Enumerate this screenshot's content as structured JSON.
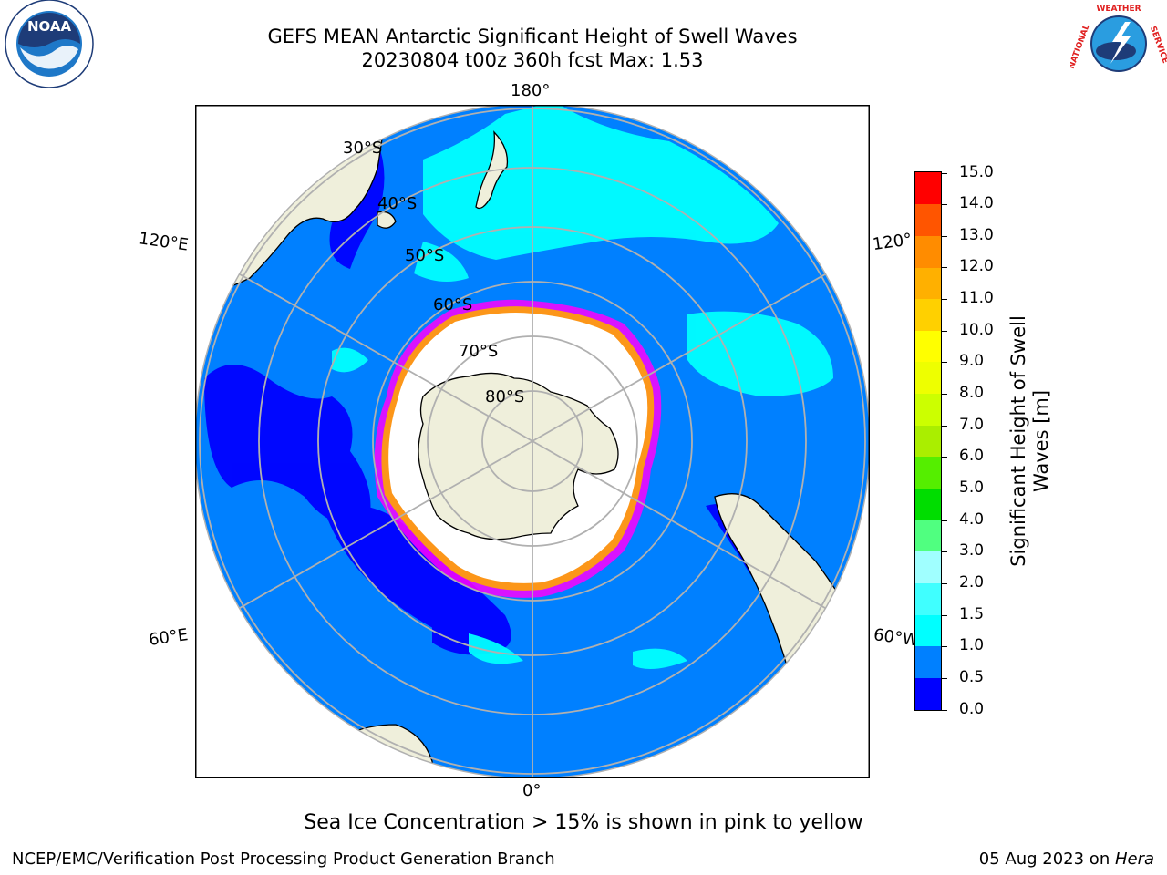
{
  "title": {
    "line1": "GEFS MEAN Antarctic Significant Height of Swell Waves",
    "line2": "20230804 t00z 360h fcst   Max: 1.53"
  },
  "map": {
    "longitude_labels": [
      "180°",
      "120°E",
      "120°",
      "60°E",
      "60°W",
      "0°"
    ],
    "latitude_labels": [
      "30°S",
      "40°S",
      "50°S",
      "60°S",
      "70°S",
      "80°S"
    ],
    "ocean_color": "#0080ff",
    "swell_band_color": "#00ffff",
    "low_swell_color": "#0000ff",
    "land_color": "#efefdb",
    "ice_color": "#ffffff",
    "ice_edge_colors": [
      "#ff00ff",
      "#ffa500",
      "#ffff00"
    ],
    "graticule_color": "#b0b0b0"
  },
  "colorbar": {
    "title_line1": "Significant Height of Swell",
    "title_line2": "Waves [m]",
    "ticks": [
      "0.0",
      "0.5",
      "1.0",
      "1.5",
      "2.0",
      "3.0",
      "4.0",
      "5.0",
      "6.0",
      "7.0",
      "8.0",
      "9.0",
      "10.0",
      "11.0",
      "12.0",
      "13.0",
      "14.0",
      "15.0"
    ],
    "colors": [
      "#0000ff",
      "#0080ff",
      "#00ffff",
      "#40ffff",
      "#a0ffff",
      "#50ff80",
      "#00dd00",
      "#55ee00",
      "#aaee00",
      "#ccff00",
      "#eeff00",
      "#ffff00",
      "#ffd000",
      "#ffb000",
      "#ff8c00",
      "#ff5500",
      "#ff0000"
    ]
  },
  "caption": "Sea Ice Concentration > 15% is shown in pink to yellow",
  "footer": {
    "left": "NCEP/EMC/Verification Post Processing Product Generation Branch",
    "right_date": "05 Aug 2023 on ",
    "right_host": "Hera"
  },
  "logos": {
    "left_text": "NOAA",
    "right_text": "NATIONAL WEATHER SERVICE"
  }
}
